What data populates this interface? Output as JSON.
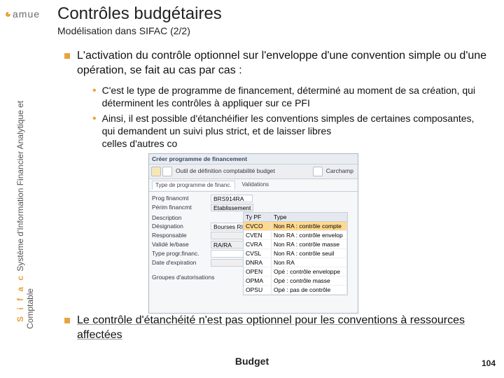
{
  "logo": {
    "text": "amue"
  },
  "title": "Contrôles budgétaires",
  "subtitle": "Modélisation dans SIFAC (2/2)",
  "sidebar": {
    "brand": "S i f a c",
    "line1_rest": "  Système d'Information Financier Analytique et",
    "line2": "Comptable"
  },
  "bullets": {
    "b1": "L'activation du contrôle optionnel sur l'enveloppe d'une convention simple ou d'une opération, se fait au cas par cas :",
    "sub1": "C'est le type de programme de financement, déterminé au moment de sa création, qui déterminent les contrôles à appliquer sur ce PFI",
    "sub2_a": "Ainsi, il est possible d'étanchéifier les conventions simples de certaines composantes, qui demandent un suivi plus strict, et de laisser libres",
    "sub2_b": "celles d'autres co",
    "b2": "Le contrôle d'étanchéité n'est pas optionnel pour les conventions à ressources affectées"
  },
  "screenshot": {
    "title": "Créer programme de financement",
    "toolbar_text": "Outil de définition comptabilité budget",
    "toolbar_right": "Carchamp",
    "tab1": "Type de programme de financ.",
    "tab2": "Validations",
    "prog_lbl": "Prog financmt",
    "prog_val": "BRS914RA",
    "etab_lbl": "Périm financmt",
    "etab_val": "Etablissement",
    "desc_lbl": "Description",
    "desig_lbl": "Désignation",
    "desig_val": "Bourses RI",
    "resp_lbl": "Responsable",
    "valid_lbl": "Validé le/base",
    "valid_val": "RA/RA",
    "typeprog_lbl": "Type progr.financ.",
    "dateexp_lbl": "Date d'expiration",
    "grp_lbl": "Groupes d'autorisations",
    "table": {
      "h1": "Ty PF",
      "h2": "Type",
      "rows": [
        [
          "CVCO",
          "Non RA : contrôle compte"
        ],
        [
          "CVEN",
          "Non RA : contrôle envelop"
        ],
        [
          "CVRA",
          "Non RA : contrôle masse"
        ],
        [
          "CVSL",
          "Non RA : contrôle seuil"
        ],
        [
          "DNRA",
          "Non RA"
        ],
        [
          "OPEN",
          "Opé : contrôle enveloppe"
        ],
        [
          "OPMA",
          "Opé : contrôle masse"
        ],
        [
          "OPSU",
          "Opé : pas de contrôle"
        ]
      ],
      "highlight_index": 0
    }
  },
  "footer": {
    "center": "Budget",
    "page": "104"
  },
  "colors": {
    "accent": "#e8a33d"
  }
}
